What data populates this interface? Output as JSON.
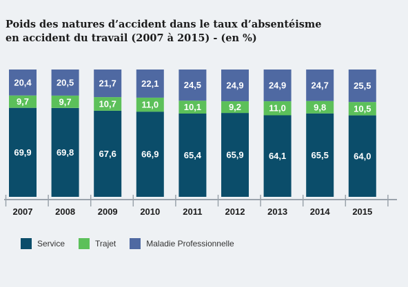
{
  "title_line1": "Poids des natures d’accident dans le taux d’absentéisme",
  "title_line2": "en accident du travail (2007 à 2015) - (en %)",
  "colors": {
    "service": "#0b4d6a",
    "trajet": "#5cc05a",
    "maladie": "#4f69a2",
    "axis": "#9aa3ab"
  },
  "chart_data": {
    "type": "bar",
    "stacked": true,
    "title": "Poids des natures d’accident dans le taux d’absentéisme en accident du travail (2007 à 2015) - (en %)",
    "categories": [
      "2007",
      "2008",
      "2009",
      "2010",
      "2011",
      "2012",
      "2013",
      "2014",
      "2015"
    ],
    "series": [
      {
        "name": "Service",
        "values": [
          69.9,
          69.8,
          67.6,
          66.9,
          65.4,
          65.9,
          64.1,
          65.5,
          64.0
        ],
        "labels": [
          "69,9",
          "69,8",
          "67,6",
          "66,9",
          "65,4",
          "65,9",
          "64,1",
          "65,5",
          "64,0"
        ]
      },
      {
        "name": "Trajet",
        "values": [
          9.7,
          9.7,
          10.7,
          11.0,
          10.1,
          9.2,
          11.0,
          9.8,
          10.5
        ],
        "labels": [
          "9,7",
          "9,7",
          "10,7",
          "11,0",
          "10,1",
          "9,2",
          "11,0",
          "9,8",
          "10,5"
        ]
      },
      {
        "name": "Maladie Professionnelle",
        "values": [
          20.4,
          20.5,
          21.7,
          22.1,
          24.5,
          24.9,
          24.9,
          24.7,
          25.5
        ],
        "labels": [
          "20,4",
          "20,5",
          "21,7",
          "22,1",
          "24,5",
          "24,9",
          "24,9",
          "24,7",
          "25,5"
        ]
      }
    ],
    "ylim": [
      0,
      100
    ],
    "legend_position": "bottom-left",
    "grid": false
  }
}
